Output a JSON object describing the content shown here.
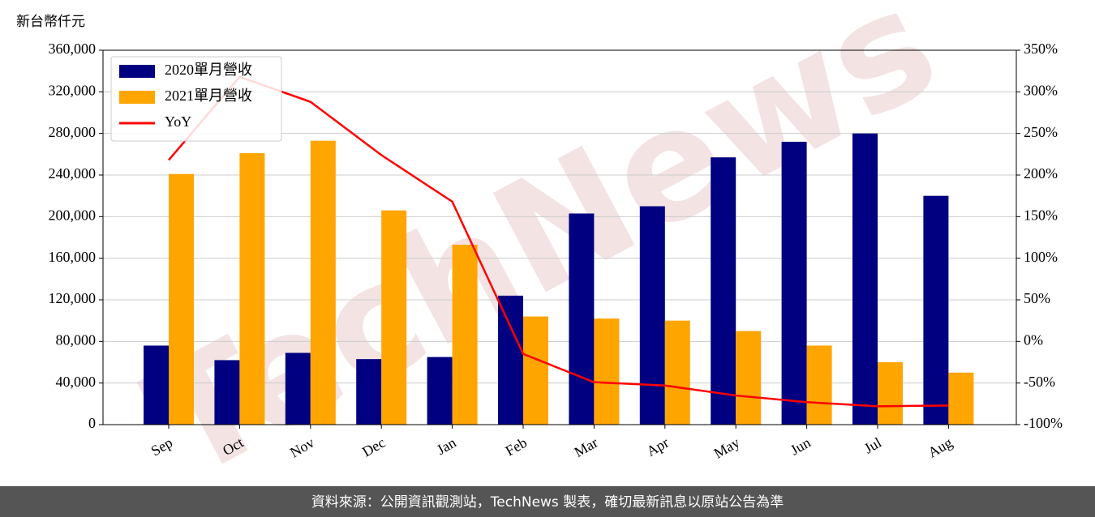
{
  "chart_data": {
    "type": "bar_line",
    "y_label": "新台幣仟元",
    "watermark": "TechNews",
    "source": "資料來源：公開資訊觀測站，TechNews 製表，確切最新訊息以原站公告為準",
    "categories": [
      "Sep",
      "Oct",
      "Nov",
      "Dec",
      "Jan",
      "Feb",
      "Mar",
      "Apr",
      "May",
      "Jun",
      "Jul",
      "Aug"
    ],
    "series": [
      {
        "name": "2020單月營收",
        "color": "#000080",
        "kind": "bar",
        "values": [
          76000,
          62000,
          69000,
          63000,
          65000,
          124000,
          203000,
          210000,
          257000,
          272000,
          280000,
          220000
        ]
      },
      {
        "name": "2021單月營收",
        "color": "#ffa500",
        "kind": "bar",
        "values": [
          241000,
          261000,
          273000,
          206000,
          173000,
          104000,
          102000,
          100000,
          90000,
          76000,
          60000,
          50000
        ]
      },
      {
        "name": "YoY",
        "color": "#ff0000",
        "kind": "line",
        "axis": "y2",
        "values": [
          218,
          318,
          288,
          224,
          168,
          -15,
          -49,
          -53,
          -65,
          -73,
          -78,
          -77
        ]
      }
    ],
    "ylim": [
      0,
      360000
    ],
    "yticks": [
      0,
      {
        "value": 40000,
        "label": "40,000"
      },
      {
        "value": 80000,
        "label": "80,000"
      },
      {
        "value": 120000,
        "label": "120,000"
      },
      {
        "value": 160000,
        "label": "160,000"
      },
      {
        "value": 200000,
        "label": "200,000"
      },
      {
        "value": 240000,
        "label": "240,000"
      },
      {
        "value": 280000,
        "label": "280,000"
      },
      {
        "value": 320000,
        "label": "320,000"
      },
      {
        "value": 360000,
        "label": "360,000"
      }
    ],
    "y2lim": [
      -100,
      350
    ],
    "y2ticks": [
      {
        "value": -100,
        "label": "-100%"
      },
      {
        "value": -50,
        "label": "-50%"
      },
      {
        "value": 0,
        "label": "0%"
      },
      {
        "value": 50,
        "label": "50%"
      },
      {
        "value": 100,
        "label": "100%"
      },
      {
        "value": 150,
        "label": "150%"
      },
      {
        "value": 200,
        "label": "200%"
      },
      {
        "value": 250,
        "label": "250%"
      },
      {
        "value": 300,
        "label": "300%"
      },
      {
        "value": 350,
        "label": "350%"
      }
    ],
    "grid": true,
    "legend": "upper left"
  }
}
